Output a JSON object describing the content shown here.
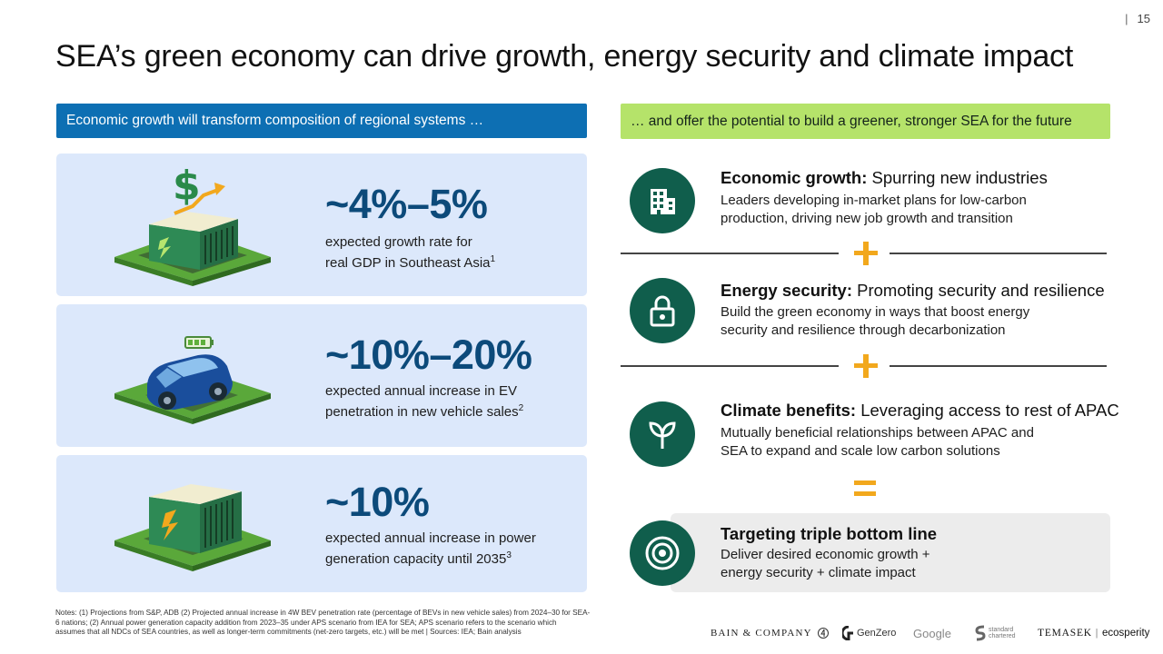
{
  "page": {
    "number": "15",
    "separator": "|"
  },
  "title": "SEA’s green economy can drive growth, energy security and climate impact",
  "left_header": "Economic growth will transform composition of regional systems …",
  "right_header": "… and offer the potential to build a greener, stronger SEA for the future",
  "stats": [
    {
      "value": "~4%–5%",
      "line1": "expected growth rate for",
      "line2": "real GDP in Southeast Asia",
      "sup": "1",
      "icon": "building-dollar-icon"
    },
    {
      "value": "~10%–20%",
      "line1": "expected annual increase in EV",
      "line2": "penetration in new vehicle sales",
      "sup": "2",
      "icon": "electric-car-icon"
    },
    {
      "value": "~10%",
      "line1": "expected annual increase in power",
      "line2": "generation capacity until 2035",
      "sup": "3",
      "icon": "power-station-icon"
    }
  ],
  "pillars": [
    {
      "bold": "Economic growth:",
      "rest": "Spurring new industries",
      "line1": "Leaders developing in-market plans for low-carbon",
      "line2": "production, driving new job growth and transition",
      "icon": "building-icon"
    },
    {
      "bold": "Energy security:",
      "rest": "Promoting security and resilience",
      "line1": "Build the green economy in ways that boost energy",
      "line2": "security and resilience through decarbonization",
      "icon": "lock-icon"
    },
    {
      "bold": "Climate benefits:",
      "rest": "Leveraging access to rest of APAC",
      "line1": "Mutually beneficial relationships between APAC and",
      "line2": "SEA to expand and scale low carbon solutions",
      "icon": "sprout-icon"
    }
  ],
  "target": {
    "title": "Targeting triple bottom line",
    "line1": "Deliver desired economic growth +",
    "line2": "energy security + climate impact",
    "icon": "target-icon"
  },
  "notes": {
    "line1": "Notes: (1) Projections from S&P, ADB (2) Projected annual increase in 4W BEV penetration rate (percentage of BEVs in new vehicle sales) from 2024–30 for SEA-",
    "line2": "6 nations; (2) Annual power generation capacity addition from 2023–35 under APS scenario from IEA for SEA; APS scenario refers to the scenario which",
    "line3": "assumes that all NDCs of SEA countries, as well as longer-term commitments (net-zero targets, etc.) will be met | Sources: IEA; Bain analysis"
  },
  "logos": {
    "bain": "BAIN & COMPANY",
    "genzero": "GenZero",
    "google": "Google",
    "sc_line1": "standard",
    "sc_line2": "chartered",
    "temasek": "TEMASEK",
    "ecosperity": "ecosperity"
  },
  "colors": {
    "left_header_bg": "#0d6fb3",
    "right_header_bg": "#b5e36a",
    "stat_card_bg": "#dce8fb",
    "stat_value": "#0c4a7a",
    "pillar_circle": "#105e4c",
    "accent_orange": "#f2a81d"
  }
}
